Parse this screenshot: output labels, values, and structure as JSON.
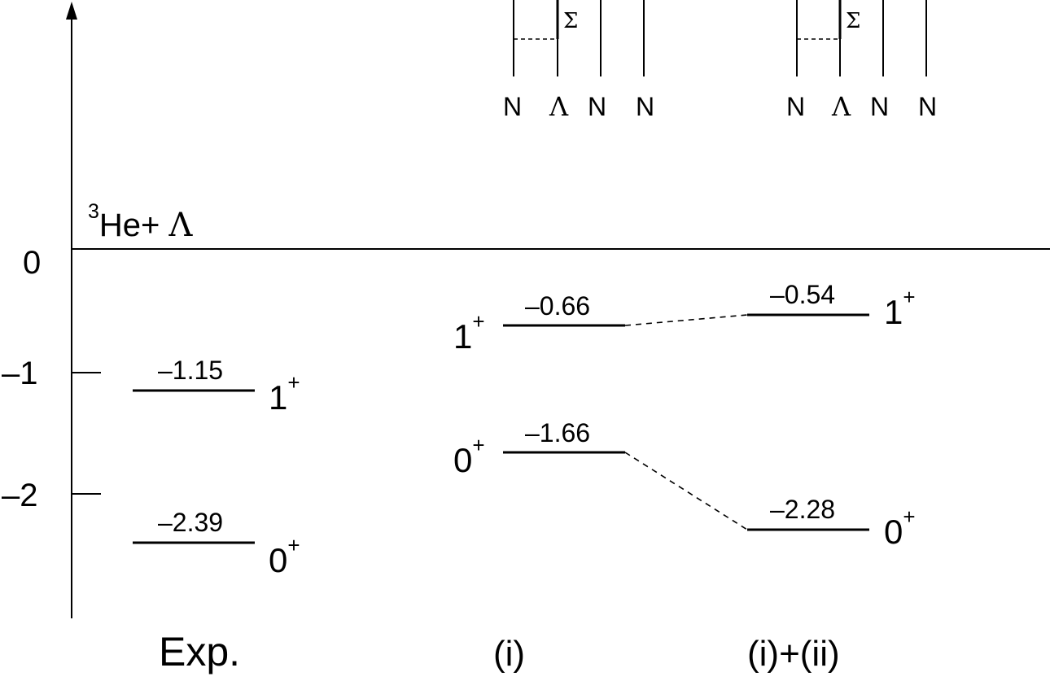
{
  "threshold": {
    "superscript": "3",
    "label": "He+ ",
    "lambda": "Λ"
  },
  "axis": {
    "ticks": [
      {
        "value": 0,
        "label": "0"
      },
      {
        "value": -1,
        "label": "–1"
      },
      {
        "value": -2,
        "label": "–2"
      }
    ]
  },
  "columns": [
    {
      "title": "Exp.",
      "levels": [
        {
          "energy": -1.15,
          "energy_label": "–1.15",
          "state": "1",
          "parity": "+"
        },
        {
          "energy": -2.39,
          "energy_label": "–2.39",
          "state": "0",
          "parity": "+"
        }
      ]
    },
    {
      "title": "(i)",
      "levels": [
        {
          "energy": -0.66,
          "energy_label": "–0.66",
          "state": "1",
          "parity": "+"
        },
        {
          "energy": -1.66,
          "energy_label": "–1.66",
          "state": "0",
          "parity": "+"
        }
      ]
    },
    {
      "title": "(i)+(ii)",
      "levels": [
        {
          "energy": -0.54,
          "energy_label": "–0.54",
          "state": "1",
          "parity": "+"
        },
        {
          "energy": -2.28,
          "energy_label": "–2.28",
          "state": "0",
          "parity": "+"
        }
      ]
    }
  ],
  "insets": [
    {
      "sigma": "Σ",
      "particles": [
        "N",
        "Λ",
        "N",
        "N"
      ]
    },
    {
      "sigma": "Σ",
      "particles": [
        "N",
        "Λ",
        "N",
        "N"
      ]
    }
  ]
}
